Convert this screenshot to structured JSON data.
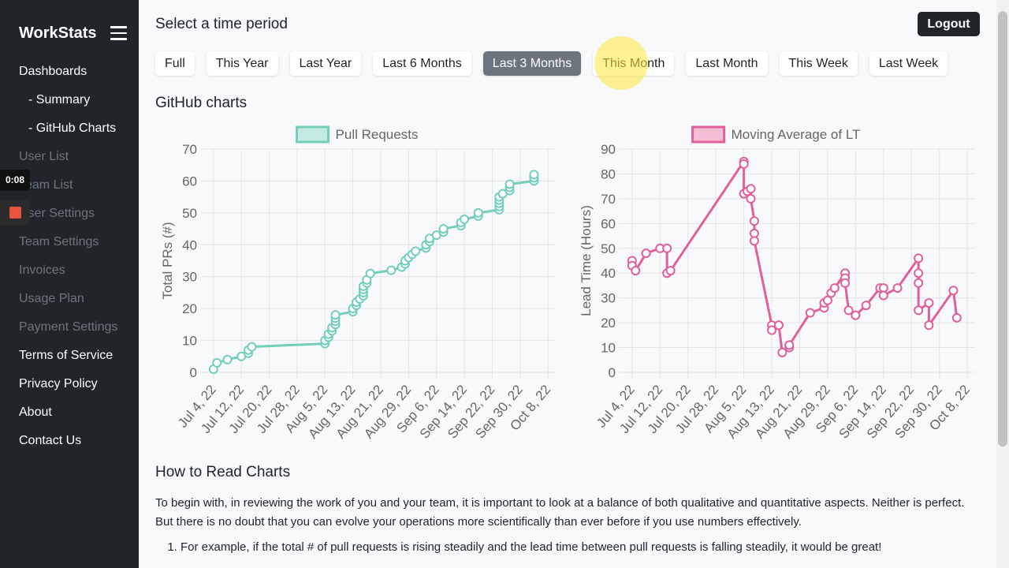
{
  "sidebar": {
    "brand": "WorkStats",
    "menu": [
      "Dashboards",
      "- Summary",
      "- GitHub Charts",
      "User List",
      "Team List",
      "User Settings",
      "Team Settings",
      "Invoices",
      "Usage Plan",
      "Payment Settings",
      "Terms of Service",
      "Privacy Policy",
      "About",
      "Contact Us"
    ]
  },
  "recording_timer": "0:08",
  "header": {
    "period_label": "Select a time period",
    "logout": "Logout",
    "periods": [
      "Full",
      "This Year",
      "Last Year",
      "Last 6 Months",
      "Last 3 Months",
      "This Month",
      "Last Month",
      "This Week",
      "Last Week"
    ]
  },
  "section_title": "GitHub charts",
  "chart_data": [
    {
      "type": "line",
      "y_label": "Total PRs (#)",
      "grid": true,
      "x": [
        "2022-07-04",
        "2022-07-05",
        "2022-07-08",
        "2022-07-12",
        "2022-07-14",
        "2022-07-14",
        "2022-07-15",
        "2022-08-05",
        "2022-08-05",
        "2022-08-06",
        "2022-08-06",
        "2022-08-07",
        "2022-08-07",
        "2022-08-08",
        "2022-08-08",
        "2022-08-08",
        "2022-08-08",
        "2022-08-13",
        "2022-08-13",
        "2022-08-14",
        "2022-08-14",
        "2022-08-15",
        "2022-08-16",
        "2022-08-16",
        "2022-08-16",
        "2022-08-16",
        "2022-08-17",
        "2022-08-17",
        "2022-08-18",
        "2022-08-24",
        "2022-08-27",
        "2022-08-28",
        "2022-08-28",
        "2022-08-29",
        "2022-08-30",
        "2022-08-31",
        "2022-09-03",
        "2022-09-03",
        "2022-09-04",
        "2022-09-04",
        "2022-09-06",
        "2022-09-08",
        "2022-09-08",
        "2022-09-13",
        "2022-09-13",
        "2022-09-14",
        "2022-09-18",
        "2022-09-18",
        "2022-09-24",
        "2022-09-24",
        "2022-09-24",
        "2022-09-24",
        "2022-09-24",
        "2022-09-25",
        "2022-09-27",
        "2022-09-27",
        "2022-09-27",
        "2022-10-04",
        "2022-10-04",
        "2022-10-04"
      ],
      "series": [
        {
          "name": "Pull Requests",
          "color": "#73cfb8",
          "fill": "#c4ebe1",
          "values": [
            1,
            3,
            4,
            5,
            6,
            7,
            8,
            9,
            10,
            11,
            12,
            13,
            14,
            15,
            16,
            17,
            18,
            19,
            20,
            21,
            22,
            23,
            24,
            25,
            26,
            27,
            28,
            29,
            31,
            32,
            33,
            34,
            35,
            36,
            37,
            38,
            39,
            40,
            41,
            42,
            43,
            44,
            45,
            46,
            47,
            48,
            49,
            50,
            51,
            52,
            53,
            54,
            55,
            56,
            57,
            58,
            59,
            60,
            61,
            62
          ]
        }
      ],
      "xlim": [
        "2022-07-02",
        "2022-10-10"
      ],
      "ylim": [
        0,
        70
      ],
      "yticks": [
        0,
        10,
        20,
        30,
        40,
        50,
        60,
        70
      ],
      "xticks": [
        {
          "value": "2022-07-04",
          "label": "Jul 4, 22"
        },
        {
          "value": "2022-07-12",
          "label": "Jul 12, 22"
        },
        {
          "value": "2022-07-20",
          "label": "Jul 20, 22"
        },
        {
          "value": "2022-07-28",
          "label": "Jul 28, 22"
        },
        {
          "value": "2022-08-05",
          "label": "Aug 5, 22"
        },
        {
          "value": "2022-08-13",
          "label": "Aug 13, 22"
        },
        {
          "value": "2022-08-21",
          "label": "Aug 21, 22"
        },
        {
          "value": "2022-08-29",
          "label": "Aug 29, 22"
        },
        {
          "value": "2022-09-06",
          "label": "Sep 6, 22"
        },
        {
          "value": "2022-09-14",
          "label": "Sep 14, 22"
        },
        {
          "value": "2022-09-22",
          "label": "Sep 22, 22"
        },
        {
          "value": "2022-09-30",
          "label": "Sep 30, 22"
        },
        {
          "value": "2022-10-08",
          "label": "Oct 8, 22"
        }
      ]
    },
    {
      "type": "line",
      "y_label": "Lead Time (Hours)",
      "grid": true,
      "x": [
        "2022-07-04",
        "2022-07-04",
        "2022-07-05",
        "2022-07-08",
        "2022-07-12",
        "2022-07-14",
        "2022-07-14",
        "2022-07-15",
        "2022-08-05",
        "2022-08-05",
        "2022-08-05",
        "2022-08-06",
        "2022-08-07",
        "2022-08-07",
        "2022-08-08",
        "2022-08-08",
        "2022-08-08",
        "2022-08-13",
        "2022-08-13",
        "2022-08-15",
        "2022-08-15",
        "2022-08-16",
        "2022-08-18",
        "2022-08-18",
        "2022-08-24",
        "2022-08-28",
        "2022-08-28",
        "2022-08-29",
        "2022-08-30",
        "2022-08-31",
        "2022-09-03",
        "2022-09-03",
        "2022-09-03",
        "2022-09-04",
        "2022-09-06",
        "2022-09-09",
        "2022-09-13",
        "2022-09-14",
        "2022-09-14",
        "2022-09-18",
        "2022-09-24",
        "2022-09-24",
        "2022-09-24",
        "2022-09-24",
        "2022-09-27",
        "2022-09-27",
        "2022-10-04",
        "2022-10-05"
      ],
      "series": [
        {
          "name": "Moving Average of LT",
          "color": "#e0609a",
          "fill": "#f3bfd4",
          "values": [
            45,
            43,
            41,
            48,
            50,
            50,
            40,
            41,
            85,
            84,
            72,
            73,
            74,
            70,
            61,
            56,
            53,
            19,
            17,
            19,
            19,
            8,
            10,
            11,
            24,
            26,
            28,
            29,
            32,
            34,
            40,
            38,
            36,
            25,
            23,
            27,
            34,
            34,
            31,
            34,
            46,
            40,
            36,
            25,
            28,
            19,
            33,
            22
          ]
        }
      ],
      "xlim": [
        "2022-07-02",
        "2022-10-10"
      ],
      "ylim": [
        0,
        90
      ],
      "yticks": [
        0,
        10,
        20,
        30,
        40,
        50,
        60,
        70,
        80,
        90
      ],
      "xticks": [
        {
          "value": "2022-07-04",
          "label": "Jul 4, 22"
        },
        {
          "value": "2022-07-12",
          "label": "Jul 12, 22"
        },
        {
          "value": "2022-07-20",
          "label": "Jul 20, 22"
        },
        {
          "value": "2022-07-28",
          "label": "Jul 28, 22"
        },
        {
          "value": "2022-08-05",
          "label": "Aug 5, 22"
        },
        {
          "value": "2022-08-13",
          "label": "Aug 13, 22"
        },
        {
          "value": "2022-08-21",
          "label": "Aug 21, 22"
        },
        {
          "value": "2022-08-29",
          "label": "Aug 29, 22"
        },
        {
          "value": "2022-09-06",
          "label": "Sep 6, 22"
        },
        {
          "value": "2022-09-14",
          "label": "Sep 14, 22"
        },
        {
          "value": "2022-09-22",
          "label": "Sep 22, 22"
        },
        {
          "value": "2022-09-30",
          "label": "Sep 30, 22"
        },
        {
          "value": "2022-10-08",
          "label": "Oct 8, 22"
        }
      ]
    }
  ],
  "guide": {
    "title": "How to Read Charts",
    "paragraph": "To begin with, in reviewing the work of you and your team, it is important to look at a balance of both qualitative and quantitative aspects. Neither is perfect. But there is no doubt that you can evolve your operations more scientifically than ever before if you use numbers effectively.",
    "items": [
      "For example, if the total # of pull requests is rising steadily and the lead time between pull requests is falling steadily, it would be great!"
    ]
  }
}
